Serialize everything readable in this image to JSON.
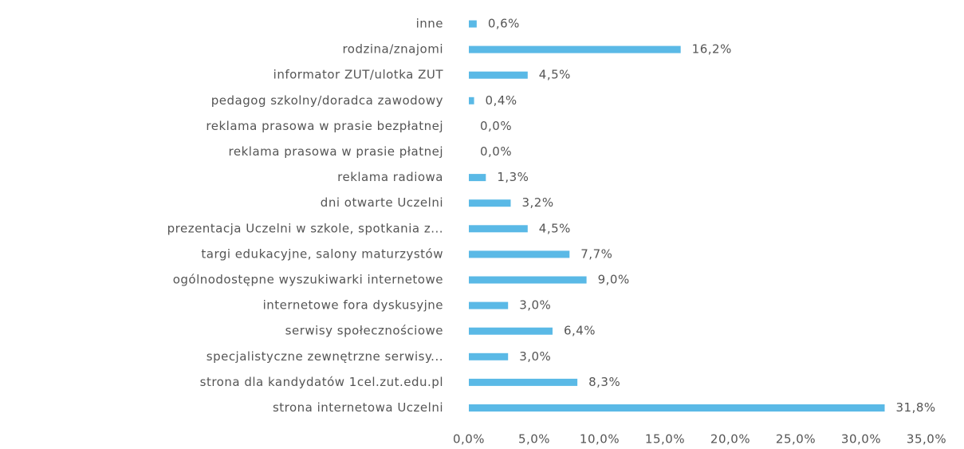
{
  "chart_data": {
    "type": "barh",
    "categories": [
      "inne",
      "rodzina/znajomi",
      "informator ZUT/ulotka ZUT",
      "pedagog szkolny/doradca zawodowy",
      "reklama prasowa w prasie bezpłatnej",
      "reklama prasowa w prasie płatnej",
      "reklama radiowa",
      "dni otwarte Uczelni",
      "prezentacja Uczelni w szkole, spotkania z...",
      "targi edukacyjne, salony maturzystów",
      "ogólnodostępne wyszukiwarki internetowe",
      "internetowe fora dyskusyjne",
      "serwisy społecznościowe",
      "specjalistyczne zewnętrzne serwisy...",
      "strona dla kandydatów 1cel.zut.edu.pl",
      "strona internetowa Uczelni"
    ],
    "values": [
      0.6,
      16.2,
      4.5,
      0.4,
      0.0,
      0.0,
      1.3,
      3.2,
      4.5,
      7.7,
      9.0,
      3.0,
      6.4,
      3.0,
      8.3,
      31.8
    ],
    "value_labels": [
      "0,6%",
      "16,2%",
      "4,5%",
      "0,4%",
      "0,0%",
      "0,0%",
      "1,3%",
      "3,2%",
      "4,5%",
      "7,7%",
      "9,0%",
      "3,0%",
      "6,4%",
      "3,0%",
      "8,3%",
      "31,8%"
    ],
    "color": "#5ab9e6",
    "xlim": [
      0,
      35
    ],
    "xticks": [
      {
        "value": 0,
        "label": "0,0%"
      },
      {
        "value": 5,
        "label": "5,0%"
      },
      {
        "value": 10,
        "label": "10,0%"
      },
      {
        "value": 15,
        "label": "15,0%"
      },
      {
        "value": 20,
        "label": "20,0%"
      },
      {
        "value": 25,
        "label": "25,0%"
      },
      {
        "value": 30,
        "label": "30,0%"
      },
      {
        "value": 35,
        "label": "35,0%"
      }
    ]
  }
}
